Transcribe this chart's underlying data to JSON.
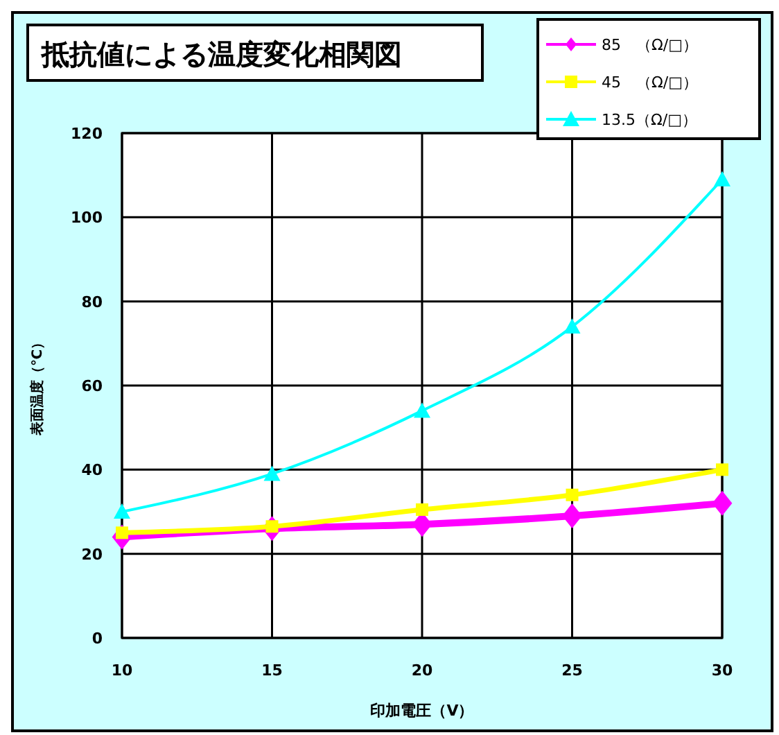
{
  "chart_data": {
    "type": "line",
    "title": "抵抗値による温度変化相関図",
    "xlabel": "印加電圧（V）",
    "ylabel": "表面温度（℃）",
    "x": [
      10,
      15,
      20,
      25,
      30
    ],
    "series": [
      {
        "name": "85　（Ω/□）",
        "color": "#ff00ff",
        "marker": "diamond",
        "values": [
          24,
          26,
          27,
          29,
          32
        ]
      },
      {
        "name": "45　（Ω/□）",
        "color": "#ffff00",
        "marker": "square",
        "values": [
          25,
          26.5,
          30.5,
          34,
          40
        ]
      },
      {
        "name": "13.5（Ω/□）",
        "color": "#00ffff",
        "marker": "triangle",
        "values": [
          30,
          39,
          54,
          74,
          109
        ]
      }
    ],
    "xlim": [
      10,
      30
    ],
    "xticks": [
      10,
      15,
      20,
      25,
      30
    ],
    "ylim": [
      0,
      120
    ],
    "yticks": [
      0,
      20,
      40,
      60,
      80,
      100,
      120
    ],
    "grid": true,
    "legend": "top right"
  }
}
